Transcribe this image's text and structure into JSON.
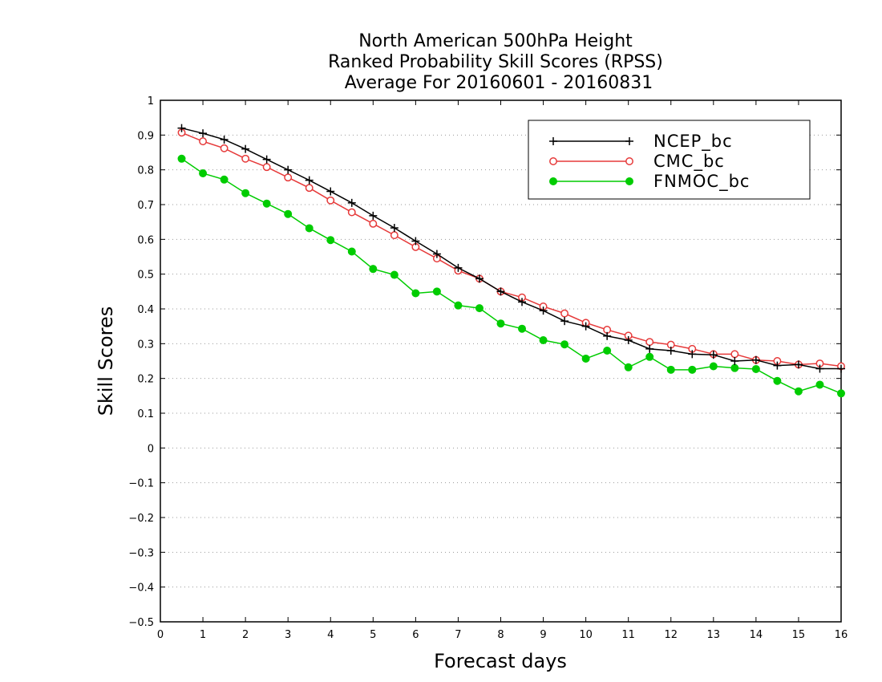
{
  "chart_data": {
    "type": "line",
    "title": [
      "North American 500hPa Height",
      "Ranked Probability Skill Scores (RPSS)",
      "Average For 20160601 - 20160831"
    ],
    "xlabel": "Forecast days",
    "ylabel": "Skill Scores",
    "xlim": [
      0,
      16
    ],
    "ylim": [
      -0.5,
      1
    ],
    "xticks": [
      "0",
      "1",
      "2",
      "3",
      "4",
      "5",
      "6",
      "7",
      "8",
      "9",
      "10",
      "11",
      "12",
      "13",
      "14",
      "15",
      "16"
    ],
    "yticks": [
      "1",
      "0.9",
      "0.8",
      "0.7",
      "0.6",
      "0.5",
      "0.4",
      "0.3",
      "0.2",
      "0.1",
      "0",
      "−0.1",
      "−0.2",
      "−0.3",
      "−0.4",
      "−0.5"
    ],
    "grid": "horizontal dotted",
    "legend_position": "top-right",
    "x": [
      0.5,
      1,
      1.5,
      2,
      2.5,
      3,
      3.5,
      4,
      4.5,
      5,
      5.5,
      6,
      6.5,
      7,
      7.5,
      8,
      8.5,
      9,
      9.5,
      10,
      10.5,
      11,
      11.5,
      12,
      12.5,
      13,
      13.5,
      14,
      14.5,
      15,
      15.5,
      16
    ],
    "series": [
      {
        "name": "NCEP_bc",
        "color": "#000000",
        "marker": "plus",
        "values": [
          0.92,
          0.905,
          0.887,
          0.86,
          0.83,
          0.8,
          0.77,
          0.738,
          0.705,
          0.668,
          0.633,
          0.595,
          0.558,
          0.518,
          0.487,
          0.45,
          0.42,
          0.395,
          0.365,
          0.35,
          0.322,
          0.31,
          0.285,
          0.28,
          0.27,
          0.268,
          0.25,
          0.253,
          0.237,
          0.24,
          0.228,
          0.228
        ]
      },
      {
        "name": "CMC_bc",
        "color": "#e63a3a",
        "marker": "open-circle",
        "values": [
          0.907,
          0.882,
          0.862,
          0.832,
          0.808,
          0.778,
          0.748,
          0.712,
          0.678,
          0.645,
          0.612,
          0.578,
          0.545,
          0.51,
          0.487,
          0.45,
          0.433,
          0.407,
          0.387,
          0.36,
          0.34,
          0.323,
          0.305,
          0.297,
          0.285,
          0.27,
          0.27,
          0.253,
          0.25,
          0.24,
          0.243,
          0.235
        ]
      },
      {
        "name": "FNMOC_bc",
        "color": "#00cc00",
        "marker": "filled-circle",
        "values": [
          0.832,
          0.79,
          0.772,
          0.733,
          0.703,
          0.673,
          0.632,
          0.598,
          0.565,
          0.515,
          0.498,
          0.445,
          0.45,
          0.41,
          0.402,
          0.358,
          0.343,
          0.31,
          0.298,
          0.257,
          0.28,
          0.232,
          0.262,
          0.225,
          0.225,
          0.235,
          0.23,
          0.227,
          0.193,
          0.163,
          0.182,
          0.157
        ]
      }
    ]
  }
}
